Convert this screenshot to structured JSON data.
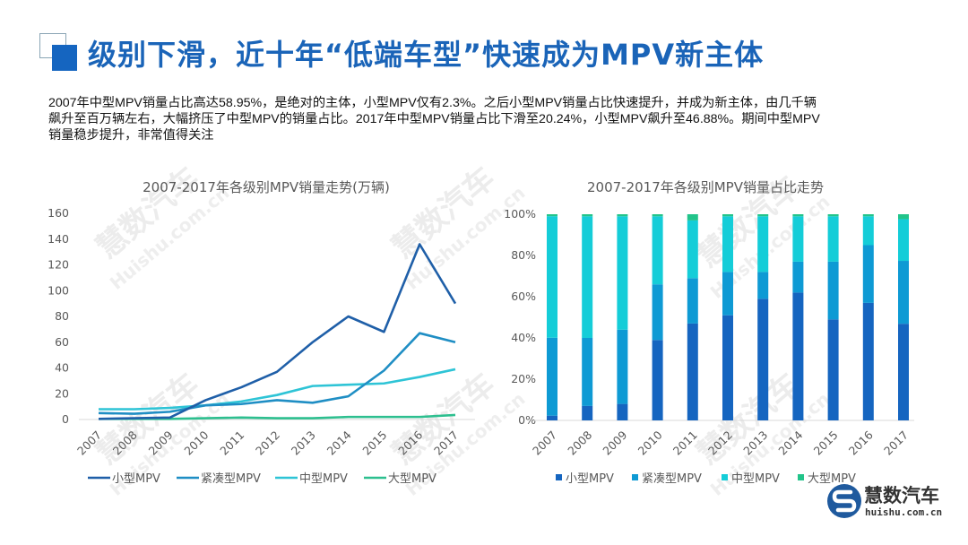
{
  "header": {
    "title": "级别下滑，近十年“低端车型”快速成为MPV新主体"
  },
  "summary": {
    "text": "2007年中型MPV销量占比高达58.95%，是绝对的主体，小型MPV仅有2.3%。之后小型MPV销量占比快速提升，并成为新主体，由几千辆\n飙升至百万辆左右，大幅挤压了中型MPV的销量占比。2017年中型MPV销量占比下滑至20.24%，小型MPV飙升至46.88%。期间中型MPV\n销量稳步提升，非常值得关注"
  },
  "watermark": {
    "brand": "慧数汽车",
    "url": "Huishu.com.cn"
  },
  "logo": {
    "name": "慧数汽车",
    "url": "huishu.com.cn"
  },
  "chart_data": [
    {
      "type": "line",
      "title": "2007-2017年各级别MPV销量走势(万辆)",
      "xlabel": "",
      "ylabel": "",
      "categories": [
        "2007",
        "2008",
        "2009",
        "2010",
        "2011",
        "2012",
        "2013",
        "2014",
        "2015",
        "2016",
        "2017"
      ],
      "ylim": [
        0,
        160
      ],
      "yticks": [
        0,
        20,
        40,
        60,
        80,
        100,
        120,
        140,
        160
      ],
      "grid": false,
      "legend": "bottom",
      "series": [
        {
          "name": "小型MPV",
          "color": "#1f5fa8",
          "values": [
            0.5,
            1,
            1.5,
            15,
            25,
            37,
            60,
            80,
            68,
            136,
            90
          ]
        },
        {
          "name": "紧凑型MPV",
          "color": "#1f8ec4",
          "values": [
            5,
            4.5,
            6,
            11,
            12,
            15,
            13,
            18,
            38,
            67,
            60
          ]
        },
        {
          "name": "中型MPV",
          "color": "#2ec4d6",
          "values": [
            8,
            8,
            9,
            11,
            14,
            19,
            26,
            27,
            28,
            33,
            39
          ]
        },
        {
          "name": "大型MPV",
          "color": "#2dbf8f",
          "values": [
            0.5,
            0.5,
            0.5,
            1,
            1.5,
            1,
            1,
            2,
            2,
            2,
            3.5
          ]
        }
      ]
    },
    {
      "type": "bar",
      "stacked": true,
      "title": "2007-2017年各级别MPV销量占比走势",
      "xlabel": "",
      "ylabel": "",
      "categories": [
        "2007",
        "2008",
        "2009",
        "2010",
        "2011",
        "2012",
        "2013",
        "2014",
        "2015",
        "2016",
        "2017"
      ],
      "ylim": [
        0,
        100
      ],
      "yticks": [
        "0%",
        "20%",
        "40%",
        "60%",
        "80%",
        "100%"
      ],
      "grid": false,
      "legend": "bottom",
      "series": [
        {
          "name": "小型MPV",
          "color": "#1565c0",
          "values": [
            2.3,
            7,
            8,
            39,
            47,
            51,
            59,
            62,
            49,
            57,
            46.88
          ]
        },
        {
          "name": "紧凑型MPV",
          "color": "#0e9ad4",
          "values": [
            37.8,
            33,
            36,
            27,
            22,
            21,
            13,
            15,
            28,
            28,
            30.5
          ]
        },
        {
          "name": "中型MPV",
          "color": "#14cdd8",
          "values": [
            58.95,
            59,
            55,
            33,
            28,
            27,
            27,
            22,
            22,
            14,
            20.24
          ]
        },
        {
          "name": "大型MPV",
          "color": "#22c48a",
          "values": [
            0.95,
            1,
            1,
            1,
            3,
            1,
            1,
            1,
            1,
            1,
            2.38
          ]
        }
      ]
    }
  ]
}
